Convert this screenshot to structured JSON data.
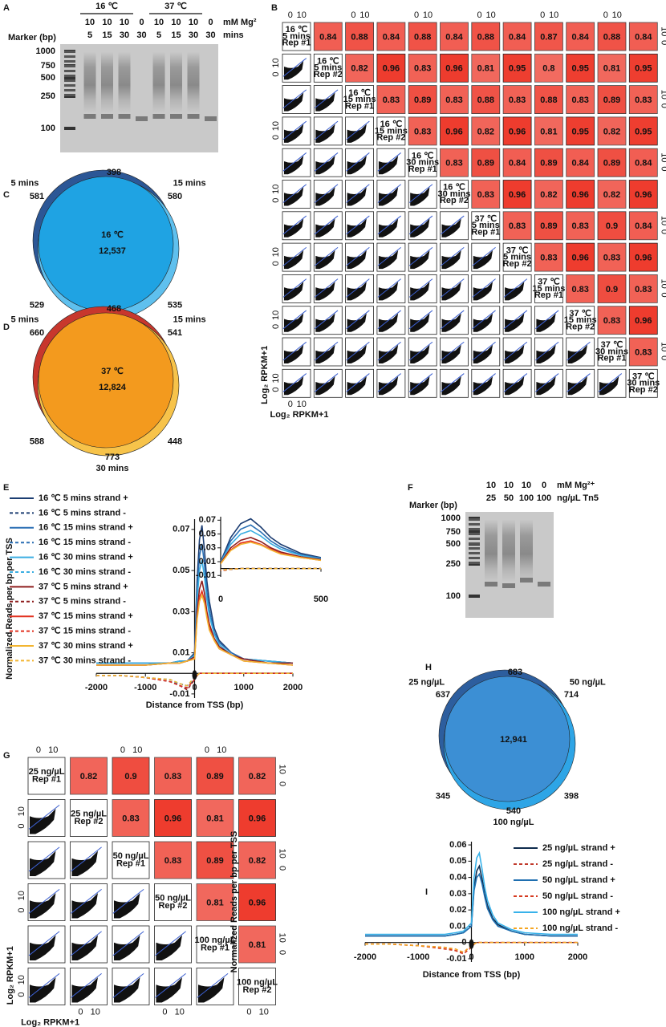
{
  "panel_labels": [
    "A",
    "B",
    "C",
    "D",
    "E",
    "F",
    "G",
    "H",
    "I"
  ],
  "gel_a": {
    "marker_label": "Marker (bp)",
    "marker_sizes": [
      "1000",
      "750",
      "500",
      "250",
      "100"
    ],
    "groups": [
      "16 ℃",
      "37 ℃"
    ],
    "row_labels": [
      "mM Mg²",
      "mins"
    ],
    "lanes": [
      [
        "10",
        "5"
      ],
      [
        "10",
        "15"
      ],
      [
        "10",
        "30"
      ],
      [
        "0",
        "30"
      ],
      [
        "10",
        "5"
      ],
      [
        "10",
        "15"
      ],
      [
        "10",
        "30"
      ],
      [
        "0",
        "30"
      ]
    ]
  },
  "gel_f": {
    "marker_label": "Marker (bp)",
    "marker_sizes": [
      "1000",
      "750",
      "500",
      "250",
      "100"
    ],
    "row_labels": [
      "mM Mg²⁺",
      "ng/µL Tn5"
    ],
    "lanes": [
      [
        "10",
        "25"
      ],
      [
        "10",
        "50"
      ],
      [
        "10",
        "100"
      ],
      [
        "0",
        "100"
      ]
    ]
  },
  "matrix_b": {
    "tick_labels": [
      "0",
      "10"
    ],
    "axis_label": "Log₂ RPKM+1",
    "cell_color": "#ee3a2c",
    "labels": [
      [
        "16 ℃",
        "5 mins",
        "Rep #1"
      ],
      [
        "16 ℃",
        "5 mins",
        "Rep #2"
      ],
      [
        "16 ℃",
        "15 mins",
        "Rep #1"
      ],
      [
        "16 ℃",
        "15 mins",
        "Rep #2"
      ],
      [
        "16 ℃",
        "30 mins",
        "Rep #1"
      ],
      [
        "16 ℃",
        "30 mins",
        "Rep #2"
      ],
      [
        "37 ℃",
        "5 mins",
        "Rep #1"
      ],
      [
        "37 ℃",
        "5 mins",
        "Rep #2"
      ],
      [
        "37 ℃",
        "15 mins",
        "Rep #1"
      ],
      [
        "37 ℃",
        "15 mins",
        "Rep #2"
      ],
      [
        "37 ℃",
        "30 mins",
        "Rep #1"
      ],
      [
        "37 ℃",
        "30 mins",
        "Rep #2"
      ]
    ],
    "values": [
      [
        0.84,
        0.88,
        0.84,
        0.88,
        0.84,
        0.88,
        0.84,
        0.87,
        0.84,
        0.88,
        0.84
      ],
      [
        0.82,
        0.96,
        0.83,
        0.96,
        0.81,
        0.95,
        0.8,
        0.95,
        0.81,
        0.95
      ],
      [
        0.83,
        0.89,
        0.83,
        0.88,
        0.83,
        0.88,
        0.83,
        0.89,
        0.83
      ],
      [
        0.83,
        0.96,
        0.82,
        0.96,
        0.81,
        0.95,
        0.82,
        0.95
      ],
      [
        0.83,
        0.89,
        0.84,
        0.89,
        0.84,
        0.89,
        0.84
      ],
      [
        0.83,
        0.96,
        0.82,
        0.96,
        0.82,
        0.96
      ],
      [
        0.83,
        0.89,
        0.83,
        0.9,
        0.84
      ],
      [
        0.83,
        0.96,
        0.83,
        0.96
      ],
      [
        0.83,
        0.9,
        0.83
      ],
      [
        0.83,
        0.96
      ],
      [
        0.83
      ]
    ]
  },
  "matrix_g": {
    "tick_labels": [
      "0",
      "10"
    ],
    "axis_label": "Log₂ RPKM+1",
    "cell_color": "#ee3a2c",
    "labels": [
      [
        "25 ng/µL",
        "Rep #1"
      ],
      [
        "25 ng/µL",
        "Rep #2"
      ],
      [
        "50 ng/µL",
        "Rep #1"
      ],
      [
        "50 ng/µL",
        "Rep #2"
      ],
      [
        "100 ng/µL",
        "Rep #1"
      ],
      [
        "100 ng/µL",
        "Rep #2"
      ]
    ],
    "values": [
      [
        0.82,
        0.9,
        0.83,
        0.89,
        0.82
      ],
      [
        0.83,
        0.96,
        0.81,
        0.96
      ],
      [
        0.83,
        0.89,
        0.82
      ],
      [
        0.81,
        0.96
      ],
      [
        0.81
      ]
    ]
  },
  "venn_c": {
    "center_label": "16 ℃",
    "center_value": "12,537",
    "set_labels": [
      "5 mins",
      "15 mins",
      "30 mins"
    ],
    "regions": [
      "398",
      "581",
      "580",
      "529",
      "535",
      "797"
    ],
    "colors": [
      "#2c5796",
      "#1fa3e3",
      "#5fc0ee"
    ]
  },
  "venn_d": {
    "center_label": "37 ℃",
    "center_value": "12,824",
    "set_labels": [
      "5 mins",
      "15 mins",
      "30 mins"
    ],
    "regions": [
      "468",
      "660",
      "541",
      "588",
      "448",
      "773"
    ],
    "colors": [
      "#c8372d",
      "#f39a1e",
      "#f7c34a"
    ]
  },
  "venn_h": {
    "center_value": "12,941",
    "set_labels": [
      "25 ng/µL",
      "50 ng/µL",
      "100 ng/µL"
    ],
    "regions": [
      "683",
      "637",
      "714",
      "345",
      "398",
      "540"
    ],
    "colors": [
      "#2d5e9e",
      "#3c8fd4",
      "#2ea5e6"
    ]
  },
  "chart_data": [
    {
      "type": "line",
      "y_label": "Normalized Reads per bp per TSS",
      "x_label": "Distance from TSS (bp)",
      "x": [
        -2000,
        -1500,
        -1000,
        -500,
        -300,
        -150,
        0,
        50,
        100,
        150,
        200,
        250,
        300,
        400,
        500,
        750,
        1000,
        1500,
        2000
      ],
      "xlim": [
        -2000,
        2000
      ],
      "xticks": [
        -2000,
        -1000,
        0,
        1000,
        2000
      ],
      "ylim": [
        -0.012,
        0.075
      ],
      "yticks": [
        -0.01,
        0.01,
        0.03,
        0.05,
        0.07
      ],
      "inset": {
        "xlim": [
          0,
          500
        ],
        "xticks": [
          0,
          500
        ],
        "ylim": [
          -0.012,
          0.075
        ],
        "yticks": [
          -0.01,
          0.01,
          0.03,
          0.05,
          0.07
        ]
      },
      "series": [
        {
          "name": "16 ℃ 5 mins strand +",
          "color": "#1c3d72",
          "dashed": false,
          "values": [
            0.005,
            0.005,
            0.005,
            0.005,
            0.006,
            0.006,
            0.01,
            0.045,
            0.065,
            0.072,
            0.06,
            0.045,
            0.035,
            0.022,
            0.016,
            0.01,
            0.007,
            0.006,
            0.005
          ]
        },
        {
          "name": "16 ℃ 5 mins strand -",
          "color": "#1c3d72",
          "dashed": true,
          "values": [
            -0.001,
            -0.001,
            -0.002,
            -0.004,
            -0.006,
            -0.007,
            -0.003,
            -0.001,
            0,
            0,
            0,
            0,
            0,
            0,
            0,
            0,
            0,
            0,
            0
          ]
        },
        {
          "name": "16 ℃ 15 mins strand +",
          "color": "#2a6fb4",
          "dashed": false,
          "values": [
            0.005,
            0.005,
            0.005,
            0.005,
            0.006,
            0.006,
            0.009,
            0.04,
            0.057,
            0.063,
            0.053,
            0.04,
            0.031,
            0.02,
            0.015,
            0.01,
            0.007,
            0.006,
            0.005
          ]
        },
        {
          "name": "16 ℃ 15 mins strand -",
          "color": "#2a6fb4",
          "dashed": true,
          "values": [
            -0.001,
            -0.001,
            -0.002,
            -0.004,
            -0.005,
            -0.006,
            -0.003,
            -0.001,
            0,
            0,
            0,
            0,
            0,
            0,
            0,
            0,
            0,
            0,
            0
          ]
        },
        {
          "name": "16 ℃ 30 mins strand +",
          "color": "#3aaee2",
          "dashed": false,
          "values": [
            0.005,
            0.005,
            0.005,
            0.005,
            0.006,
            0.006,
            0.009,
            0.035,
            0.05,
            0.055,
            0.047,
            0.036,
            0.028,
            0.019,
            0.014,
            0.009,
            0.007,
            0.006,
            0.005
          ]
        },
        {
          "name": "16 ℃ 30 mins strand -",
          "color": "#3aaee2",
          "dashed": true,
          "values": [
            -0.001,
            -0.001,
            -0.002,
            -0.003,
            -0.005,
            -0.006,
            -0.002,
            -0.001,
            0,
            0,
            0,
            0,
            0,
            0,
            0,
            0,
            0,
            0,
            0
          ]
        },
        {
          "name": "37 ℃ 5 mins strand +",
          "color": "#8e1c1c",
          "dashed": false,
          "values": [
            0.004,
            0.004,
            0.004,
            0.005,
            0.005,
            0.006,
            0.008,
            0.03,
            0.041,
            0.045,
            0.039,
            0.03,
            0.024,
            0.017,
            0.013,
            0.009,
            0.007,
            0.005,
            0.005
          ]
        },
        {
          "name": "37 ℃ 5 mins strand -",
          "color": "#8e1c1c",
          "dashed": true,
          "values": [
            -0.001,
            -0.001,
            -0.002,
            -0.004,
            -0.006,
            -0.008,
            -0.003,
            -0.001,
            0,
            0,
            0,
            0,
            0,
            0,
            0,
            0,
            0,
            0,
            0
          ]
        },
        {
          "name": "37 ℃ 15 mins strand +",
          "color": "#e2301f",
          "dashed": false,
          "values": [
            0.004,
            0.004,
            0.004,
            0.005,
            0.005,
            0.006,
            0.007,
            0.027,
            0.037,
            0.04,
            0.035,
            0.028,
            0.022,
            0.016,
            0.012,
            0.009,
            0.006,
            0.005,
            0.004
          ]
        },
        {
          "name": "37 ℃ 15 mins strand -",
          "color": "#e2301f",
          "dashed": true,
          "values": [
            -0.001,
            -0.001,
            -0.002,
            -0.004,
            -0.006,
            -0.007,
            -0.003,
            -0.001,
            0,
            0,
            0,
            0,
            0,
            0,
            0,
            0,
            0,
            0,
            0
          ]
        },
        {
          "name": "37 ℃ 30 mins strand +",
          "color": "#f3b531",
          "dashed": false,
          "values": [
            0.004,
            0.004,
            0.004,
            0.005,
            0.005,
            0.006,
            0.007,
            0.026,
            0.035,
            0.038,
            0.034,
            0.027,
            0.021,
            0.016,
            0.012,
            0.009,
            0.006,
            0.005,
            0.004
          ]
        },
        {
          "name": "37 ℃ 30 mins strand -",
          "color": "#f3b531",
          "dashed": true,
          "values": [
            -0.001,
            -0.001,
            -0.002,
            -0.003,
            -0.005,
            -0.006,
            -0.002,
            -0.001,
            0,
            0,
            0,
            0,
            0,
            0,
            0,
            0,
            0,
            0,
            0
          ]
        }
      ]
    },
    {
      "type": "line",
      "y_label": "Normalized Reads per bp per TSS",
      "x_label": "Distance from TSS (bp)",
      "x": [
        -2000,
        -1500,
        -1000,
        -500,
        -300,
        -150,
        0,
        50,
        100,
        150,
        200,
        250,
        300,
        400,
        500,
        750,
        1000,
        1500,
        2000
      ],
      "xlim": [
        -2000,
        2000
      ],
      "xticks": [
        -2000,
        -1000,
        0,
        1000,
        2000
      ],
      "ylim": [
        -0.012,
        0.062
      ],
      "yticks": [
        -0.01,
        0,
        0.01,
        0.02,
        0.03,
        0.04,
        0.05,
        0.06
      ],
      "series": [
        {
          "name": "25 ng/µL strand +",
          "color": "#0f2b4d",
          "dashed": false,
          "values": [
            0.004,
            0.004,
            0.004,
            0.004,
            0.005,
            0.006,
            0.01,
            0.034,
            0.044,
            0.047,
            0.039,
            0.03,
            0.023,
            0.015,
            0.011,
            0.007,
            0.005,
            0.004,
            0.004
          ]
        },
        {
          "name": "25 ng/µL strand -",
          "color": "#c0392b",
          "dashed": true,
          "values": [
            -0.001,
            -0.001,
            -0.002,
            -0.003,
            -0.005,
            -0.006,
            -0.002,
            -0.001,
            0,
            0,
            0,
            0,
            0,
            0,
            0,
            0,
            0,
            0,
            0
          ]
        },
        {
          "name": "50 ng/µL strand +",
          "color": "#1f6fb0",
          "dashed": false,
          "values": [
            0.004,
            0.004,
            0.004,
            0.004,
            0.005,
            0.006,
            0.01,
            0.032,
            0.04,
            0.042,
            0.036,
            0.028,
            0.021,
            0.014,
            0.01,
            0.007,
            0.005,
            0.004,
            0.004
          ]
        },
        {
          "name": "50 ng/µL strand -",
          "color": "#d63a20",
          "dashed": true,
          "values": [
            -0.001,
            -0.001,
            -0.002,
            -0.004,
            -0.005,
            -0.007,
            -0.003,
            -0.001,
            0,
            0,
            0,
            0,
            0,
            0,
            0,
            0,
            0,
            0,
            0
          ]
        },
        {
          "name": "100 ng/µL strand +",
          "color": "#38b2ea",
          "dashed": false,
          "values": [
            0.005,
            0.005,
            0.005,
            0.005,
            0.006,
            0.007,
            0.012,
            0.04,
            0.052,
            0.055,
            0.045,
            0.034,
            0.026,
            0.017,
            0.012,
            0.008,
            0.006,
            0.005,
            0.005
          ]
        },
        {
          "name": "100 ng/µL strand -",
          "color": "#f5a623",
          "dashed": true,
          "values": [
            -0.001,
            -0.001,
            -0.002,
            -0.003,
            -0.004,
            -0.006,
            -0.002,
            -0.001,
            0,
            0,
            0,
            0,
            0,
            0,
            0,
            0,
            0,
            0,
            0
          ]
        }
      ]
    }
  ]
}
